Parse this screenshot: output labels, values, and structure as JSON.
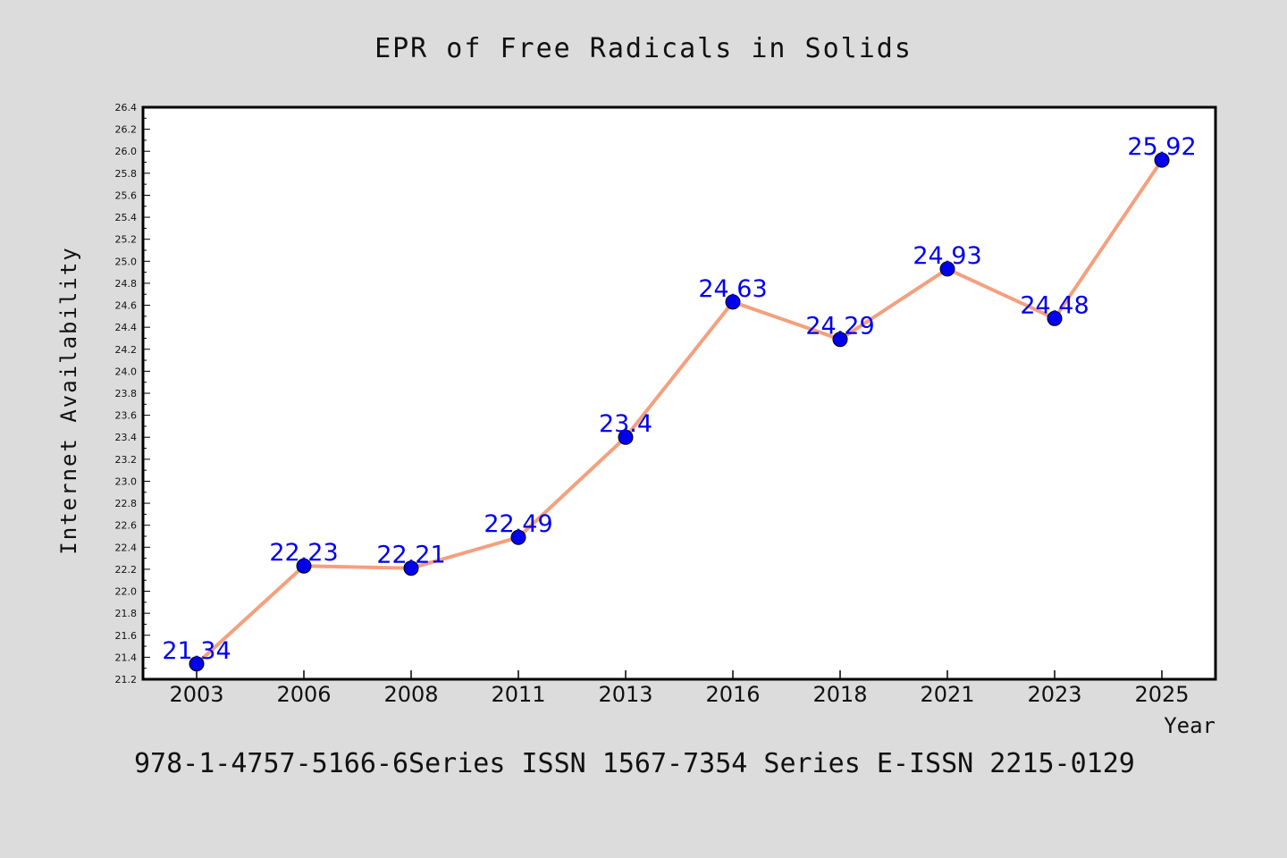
{
  "chart_data": {
    "type": "line",
    "title": "EPR of Free Radicals in Solids",
    "xlabel": "Year",
    "ylabel": "Internet Availability",
    "categories": [
      "2003",
      "2006",
      "2008",
      "2011",
      "2013",
      "2016",
      "2018",
      "2021",
      "2023",
      "2025"
    ],
    "series": [
      {
        "values": [
          21.34,
          22.23,
          22.21,
          22.49,
          23.4,
          24.63,
          24.29,
          24.93,
          24.48,
          25.92
        ],
        "labels": [
          "21.34",
          "22.23",
          "22.21",
          "22.49",
          "23.4",
          "24.63",
          "24.29",
          "24.93",
          "24.48",
          "25.92"
        ]
      }
    ],
    "ylim": [
      21.2,
      26.4
    ],
    "ytick_step": 0.2,
    "ytick_labels": [
      "21.2",
      "21.4",
      "21.6",
      "21.8",
      "22.0",
      "22.2",
      "22.4",
      "22.6",
      "22.8",
      "23.0",
      "23.2",
      "23.4",
      "23.6",
      "23.8",
      "24.0",
      "24.2",
      "24.4",
      "24.6",
      "24.8",
      "25.0",
      "25.2",
      "25.4",
      "25.6",
      "25.8",
      "26.0",
      "26.2",
      "26.4"
    ],
    "grid": false,
    "legend": "none",
    "colors": {
      "line": "#f4a07e",
      "marker": "#0000ee",
      "label": "#0000ee",
      "background": "#dcdcdc",
      "plot_background": "#ffffff"
    },
    "footer": "978-1-4757-5166-6Series ISSN 1567-7354 Series E-ISSN 2215-0129"
  }
}
